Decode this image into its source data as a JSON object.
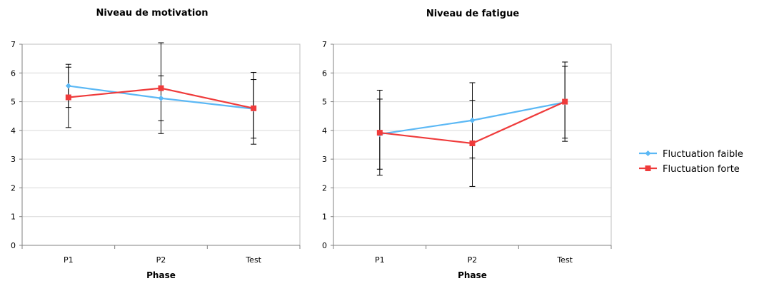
{
  "chart_data": [
    {
      "type": "line",
      "title": "Niveau de motivation",
      "xlabel": "Phase",
      "ylabel": "",
      "categories": [
        "P1",
        "P2",
        "Test"
      ],
      "ylim": [
        0,
        7
      ],
      "yticks": [
        "0",
        "1",
        "2",
        "3",
        "4",
        "5",
        "6",
        "7"
      ],
      "grid": true,
      "series": [
        {
          "name": "Fluctuation faible",
          "color": "#5bb8f5",
          "marker": "diamond",
          "values": [
            5.55,
            5.12,
            4.75
          ],
          "errors": [
            0.75,
            0.78,
            1.02
          ]
        },
        {
          "name": "Fluctuation forte",
          "color": "#ef3b3b",
          "marker": "square",
          "values": [
            5.15,
            5.47,
            4.77
          ],
          "errors": [
            1.05,
            1.58,
            1.25
          ]
        }
      ]
    },
    {
      "type": "line",
      "title": "Niveau de fatigue",
      "xlabel": "Phase",
      "ylabel": "",
      "categories": [
        "P1",
        "P2",
        "Test"
      ],
      "ylim": [
        0,
        7
      ],
      "yticks": [
        "0",
        "1",
        "2",
        "3",
        "4",
        "5",
        "6",
        "7"
      ],
      "grid": true,
      "series": [
        {
          "name": "Fluctuation faible",
          "color": "#5bb8f5",
          "marker": "diamond",
          "values": [
            3.87,
            4.35,
            4.98
          ],
          "errors": [
            1.22,
            1.31,
            1.25
          ]
        },
        {
          "name": "Fluctuation forte",
          "color": "#ef3b3b",
          "marker": "square",
          "values": [
            3.92,
            3.55,
            5.0
          ],
          "errors": [
            1.48,
            1.5,
            1.38
          ]
        }
      ]
    }
  ],
  "legend": {
    "placement": "right",
    "items": [
      {
        "label": "Fluctuation faible",
        "color": "#5bb8f5",
        "marker": "diamond"
      },
      {
        "label": "Fluctuation forte",
        "color": "#ef3b3b",
        "marker": "square"
      }
    ]
  }
}
